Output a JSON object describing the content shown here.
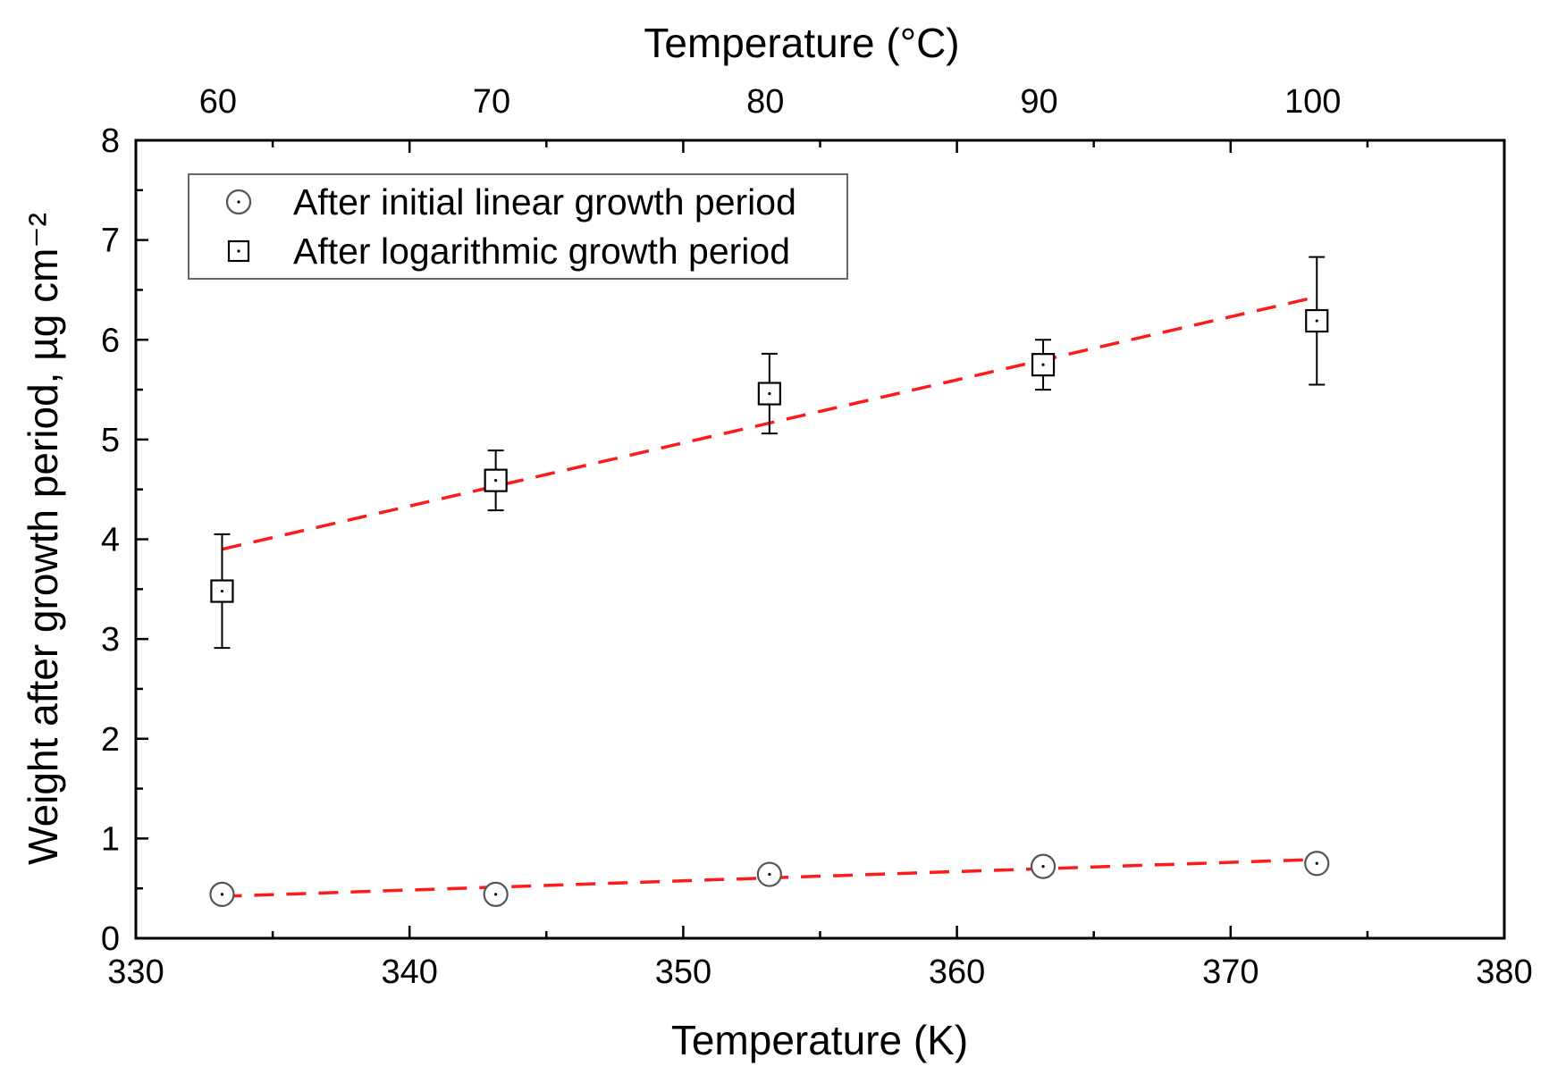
{
  "chart_data": {
    "type": "scatter",
    "title": "",
    "xlabel": "Temperature (K)",
    "xlabel_top": "Temperature (°C)",
    "ylabel": "Weight after growth period, µg cm⁻²",
    "xlim": [
      330,
      380
    ],
    "ylim": [
      0,
      8
    ],
    "x_ticks": [
      "330",
      "340",
      "350",
      "360",
      "370",
      "380"
    ],
    "y_ticks": [
      "0",
      "1",
      "2",
      "3",
      "4",
      "5",
      "6",
      "7",
      "8"
    ],
    "top_ticks": [
      {
        "label": "60",
        "kelvin": 333
      },
      {
        "label": "70",
        "kelvin": 343
      },
      {
        "label": "80",
        "kelvin": 353
      },
      {
        "label": "90",
        "kelvin": 363
      },
      {
        "label": "100",
        "kelvin": 373
      }
    ],
    "legend_position": "top-left",
    "series": [
      {
        "name": "After initial linear growth period",
        "marker": "circle",
        "x": [
          333.15,
          343.15,
          353.15,
          363.15,
          373.15
        ],
        "y": [
          0.44,
          0.44,
          0.64,
          0.72,
          0.75
        ],
        "err": [
          0.06,
          0.06,
          0.07,
          0.06,
          0.07
        ],
        "fit": {
          "x": [
            333.15,
            373.15
          ],
          "y": [
            0.42,
            0.79
          ]
        }
      },
      {
        "name": "After logarithmic growth period",
        "marker": "square",
        "x": [
          333.15,
          343.15,
          353.15,
          363.15,
          373.15
        ],
        "y": [
          3.48,
          4.59,
          5.46,
          5.75,
          6.19
        ],
        "err": [
          0.57,
          0.3,
          0.4,
          0.25,
          0.64
        ],
        "fit": {
          "x": [
            333.15,
            373.15
          ],
          "y": [
            3.9,
            6.43
          ]
        }
      }
    ]
  }
}
